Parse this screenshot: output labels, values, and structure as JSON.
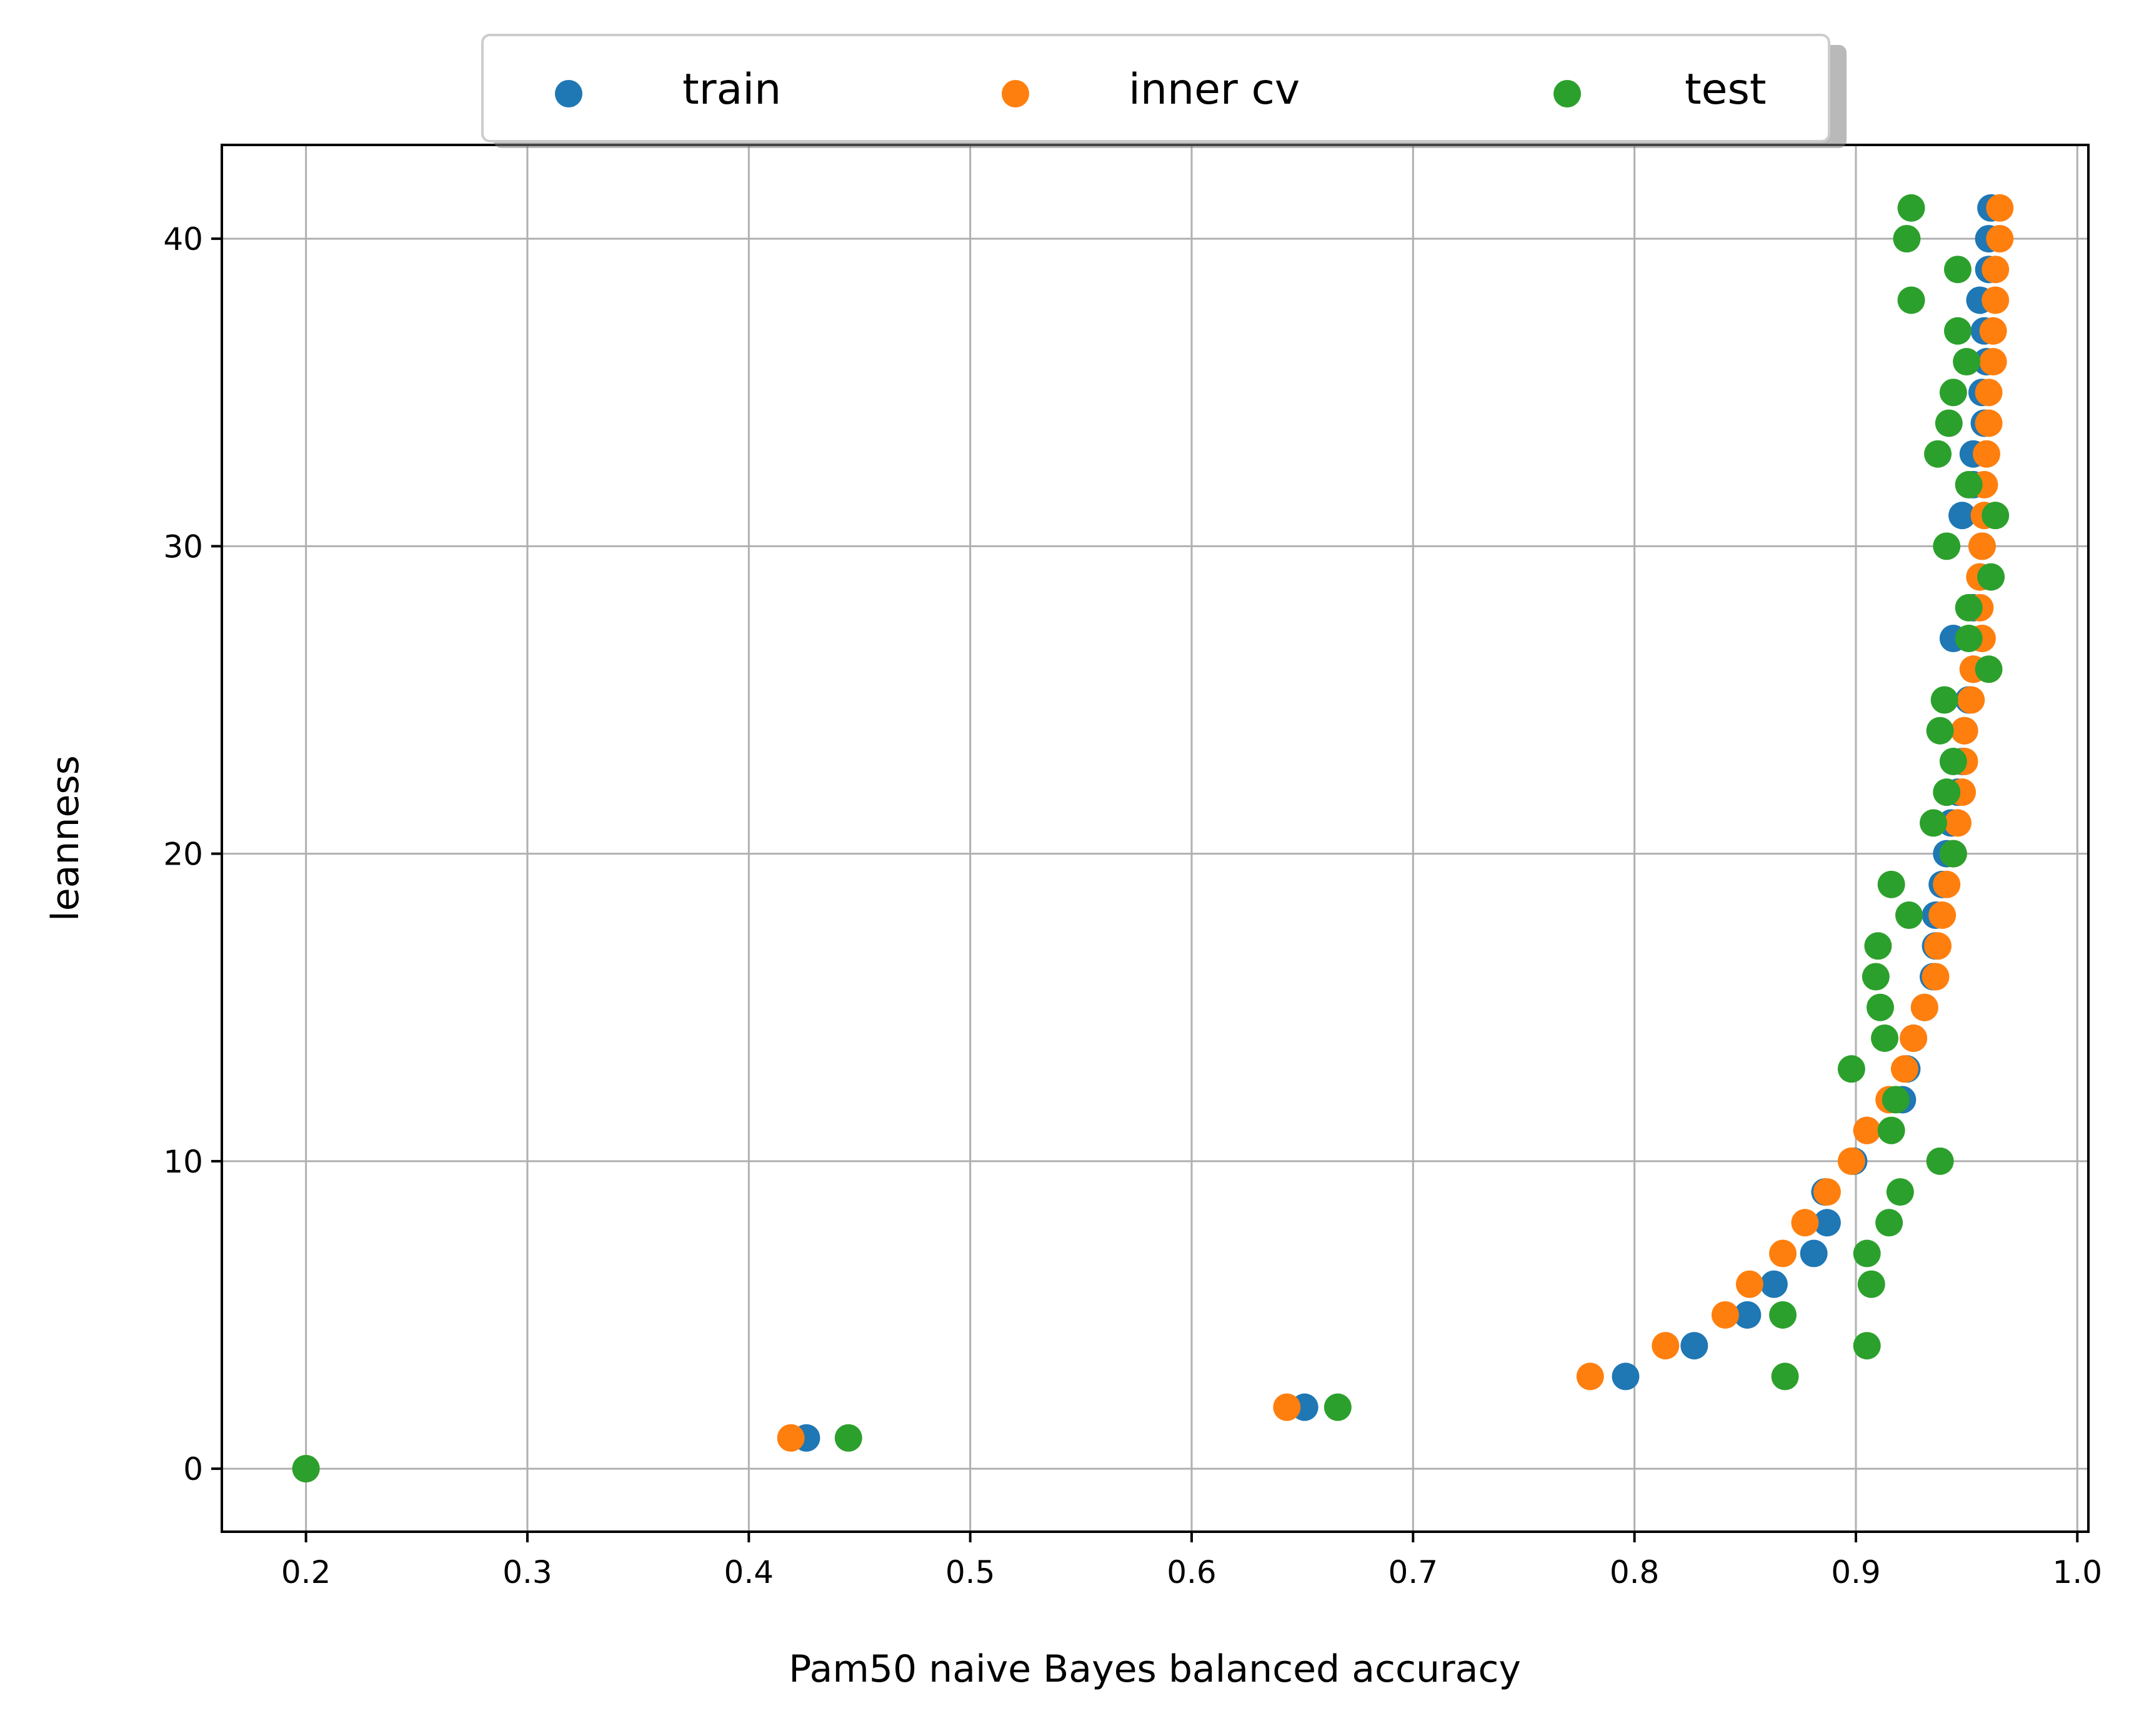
{
  "chart_data": {
    "type": "scatter",
    "xlabel": "Pam50 naive Bayes balanced accuracy",
    "ylabel": "leanness",
    "xlim": [
      0.162,
      1.005
    ],
    "ylim": [
      -2.05,
      43.05
    ],
    "xticks": [
      {
        "value": 0.2,
        "label": "0.2"
      },
      {
        "value": 0.3,
        "label": "0.3"
      },
      {
        "value": 0.4,
        "label": "0.4"
      },
      {
        "value": 0.5,
        "label": "0.5"
      },
      {
        "value": 0.6,
        "label": "0.6"
      },
      {
        "value": 0.7,
        "label": "0.7"
      },
      {
        "value": 0.8,
        "label": "0.8"
      },
      {
        "value": 0.9,
        "label": "0.9"
      },
      {
        "value": 1.0,
        "label": "1.0"
      }
    ],
    "yticks": [
      {
        "value": 0,
        "label": "0"
      },
      {
        "value": 10,
        "label": "10"
      },
      {
        "value": 20,
        "label": "20"
      },
      {
        "value": 30,
        "label": "30"
      },
      {
        "value": 40,
        "label": "40"
      }
    ],
    "grid": true,
    "legend": {
      "position": "top-center-outside",
      "columns": 3,
      "shadow": true
    },
    "series": [
      {
        "name": "train",
        "color": "#1f77b4",
        "points": [
          [
            0.2,
            0
          ],
          [
            0.426,
            1
          ],
          [
            0.651,
            2
          ],
          [
            0.796,
            3
          ],
          [
            0.827,
            4
          ],
          [
            0.851,
            5
          ],
          [
            0.863,
            6
          ],
          [
            0.881,
            7
          ],
          [
            0.887,
            8
          ],
          [
            0.886,
            9
          ],
          [
            0.899,
            10
          ],
          [
            0.905,
            11
          ],
          [
            0.921,
            12
          ],
          [
            0.923,
            13
          ],
          [
            0.926,
            14
          ],
          [
            0.931,
            15
          ],
          [
            0.935,
            16
          ],
          [
            0.936,
            17
          ],
          [
            0.936,
            18
          ],
          [
            0.939,
            19
          ],
          [
            0.941,
            20
          ],
          [
            0.943,
            21
          ],
          [
            0.946,
            22
          ],
          [
            0.948,
            23
          ],
          [
            0.949,
            24
          ],
          [
            0.951,
            25
          ],
          [
            0.953,
            26
          ],
          [
            0.944,
            27
          ],
          [
            0.953,
            28
          ],
          [
            0.956,
            29
          ],
          [
            0.957,
            30
          ],
          [
            0.948,
            31
          ],
          [
            0.953,
            32
          ],
          [
            0.953,
            33
          ],
          [
            0.958,
            34
          ],
          [
            0.957,
            35
          ],
          [
            0.959,
            36
          ],
          [
            0.958,
            37
          ],
          [
            0.956,
            38
          ],
          [
            0.96,
            39
          ],
          [
            0.96,
            40
          ],
          [
            0.961,
            41
          ]
        ]
      },
      {
        "name": "inner cv",
        "color": "#ff7f0e",
        "points": [
          [
            0.2,
            0
          ],
          [
            0.419,
            1
          ],
          [
            0.643,
            2
          ],
          [
            0.78,
            3
          ],
          [
            0.814,
            4
          ],
          [
            0.841,
            5
          ],
          [
            0.852,
            6
          ],
          [
            0.867,
            7
          ],
          [
            0.877,
            8
          ],
          [
            0.887,
            9
          ],
          [
            0.898,
            10
          ],
          [
            0.905,
            11
          ],
          [
            0.915,
            12
          ],
          [
            0.922,
            13
          ],
          [
            0.926,
            14
          ],
          [
            0.931,
            15
          ],
          [
            0.936,
            16
          ],
          [
            0.937,
            17
          ],
          [
            0.939,
            18
          ],
          [
            0.941,
            19
          ],
          [
            0.944,
            20
          ],
          [
            0.946,
            21
          ],
          [
            0.948,
            22
          ],
          [
            0.949,
            23
          ],
          [
            0.949,
            24
          ],
          [
            0.952,
            25
          ],
          [
            0.953,
            26
          ],
          [
            0.957,
            27
          ],
          [
            0.956,
            28
          ],
          [
            0.956,
            29
          ],
          [
            0.957,
            30
          ],
          [
            0.958,
            31
          ],
          [
            0.958,
            32
          ],
          [
            0.959,
            33
          ],
          [
            0.96,
            34
          ],
          [
            0.96,
            35
          ],
          [
            0.962,
            36
          ],
          [
            0.962,
            37
          ],
          [
            0.963,
            38
          ],
          [
            0.963,
            39
          ],
          [
            0.965,
            40
          ],
          [
            0.965,
            41
          ]
        ]
      },
      {
        "name": "test",
        "color": "#2ca02c",
        "points": [
          [
            0.2,
            0
          ],
          [
            0.445,
            1
          ],
          [
            0.666,
            2
          ],
          [
            0.868,
            3
          ],
          [
            0.905,
            4
          ],
          [
            0.867,
            5
          ],
          [
            0.907,
            6
          ],
          [
            0.905,
            7
          ],
          [
            0.915,
            8
          ],
          [
            0.92,
            9
          ],
          [
            0.938,
            10
          ],
          [
            0.916,
            11
          ],
          [
            0.918,
            12
          ],
          [
            0.898,
            13
          ],
          [
            0.913,
            14
          ],
          [
            0.911,
            15
          ],
          [
            0.909,
            16
          ],
          [
            0.91,
            17
          ],
          [
            0.924,
            18
          ],
          [
            0.916,
            19
          ],
          [
            0.944,
            20
          ],
          [
            0.935,
            21
          ],
          [
            0.941,
            22
          ],
          [
            0.944,
            23
          ],
          [
            0.938,
            24
          ],
          [
            0.94,
            25
          ],
          [
            0.96,
            26
          ],
          [
            0.951,
            27
          ],
          [
            0.951,
            28
          ],
          [
            0.961,
            29
          ],
          [
            0.941,
            30
          ],
          [
            0.963,
            31
          ],
          [
            0.951,
            32
          ],
          [
            0.937,
            33
          ],
          [
            0.942,
            34
          ],
          [
            0.944,
            35
          ],
          [
            0.95,
            36
          ],
          [
            0.946,
            37
          ],
          [
            0.925,
            38
          ],
          [
            0.946,
            39
          ],
          [
            0.923,
            40
          ],
          [
            0.925,
            41
          ]
        ]
      }
    ]
  }
}
